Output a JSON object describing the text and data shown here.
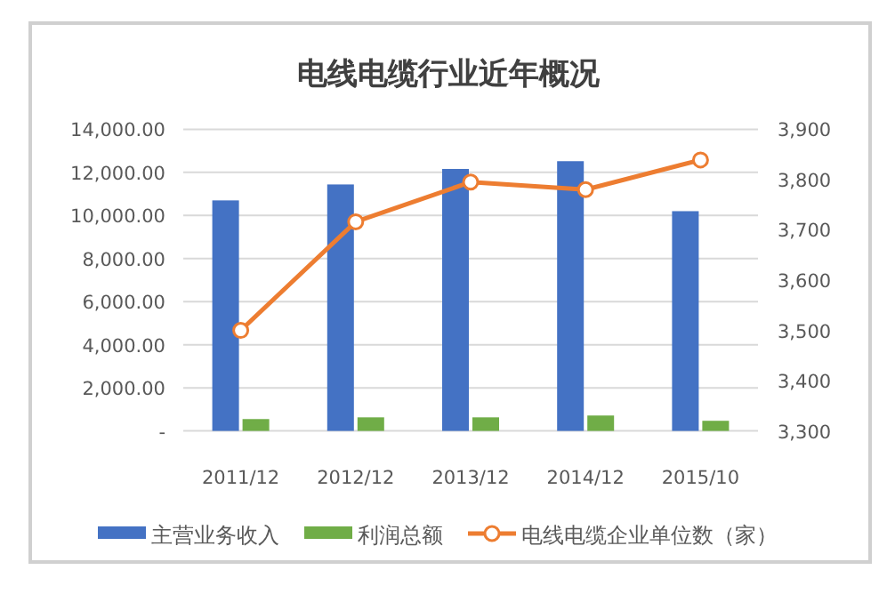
{
  "chart_data": {
    "type": "bar",
    "title": "电线电缆行业近年概况",
    "categories": [
      "2011/12",
      "2012/12",
      "2013/12",
      "2014/12",
      "2015/10"
    ],
    "series": [
      {
        "name": "主营业务收入",
        "color": "#4472c4",
        "values": [
          10700,
          11440,
          12160,
          12520,
          10200
        ]
      },
      {
        "name": "利润总额",
        "color": "#70ad47",
        "values": [
          550,
          630,
          630,
          715,
          470
        ]
      },
      {
        "name": "电线电缆企业单位数（家）",
        "color": "#ed7d31",
        "type": "line",
        "axis": "y2",
        "marker": "circle",
        "values": [
          3500,
          3716,
          3795,
          3780,
          3839
        ]
      }
    ],
    "ylim": [
      0,
      14000
    ],
    "yticks": [
      {
        "value": 0,
        "label": "-"
      },
      {
        "value": 2000,
        "label": "2,000.00"
      },
      {
        "value": 4000,
        "label": "4,000.00"
      },
      {
        "value": 6000,
        "label": "6,000.00"
      },
      {
        "value": 8000,
        "label": "8,000.00"
      },
      {
        "value": 10000,
        "label": "10,000.00"
      },
      {
        "value": 12000,
        "label": "12,000.00"
      },
      {
        "value": 14000,
        "label": "14,000.00"
      }
    ],
    "y2lim": [
      3300,
      3900
    ],
    "y2ticks": [
      {
        "value": 3300,
        "label": "3,300"
      },
      {
        "value": 3400,
        "label": "3,400"
      },
      {
        "value": 3500,
        "label": "3,500"
      },
      {
        "value": 3600,
        "label": "3,600"
      },
      {
        "value": 3700,
        "label": "3,700"
      },
      {
        "value": 3800,
        "label": "3,800"
      },
      {
        "value": 3900,
        "label": "3,900"
      }
    ],
    "grid": "y",
    "legend": "bottom"
  }
}
